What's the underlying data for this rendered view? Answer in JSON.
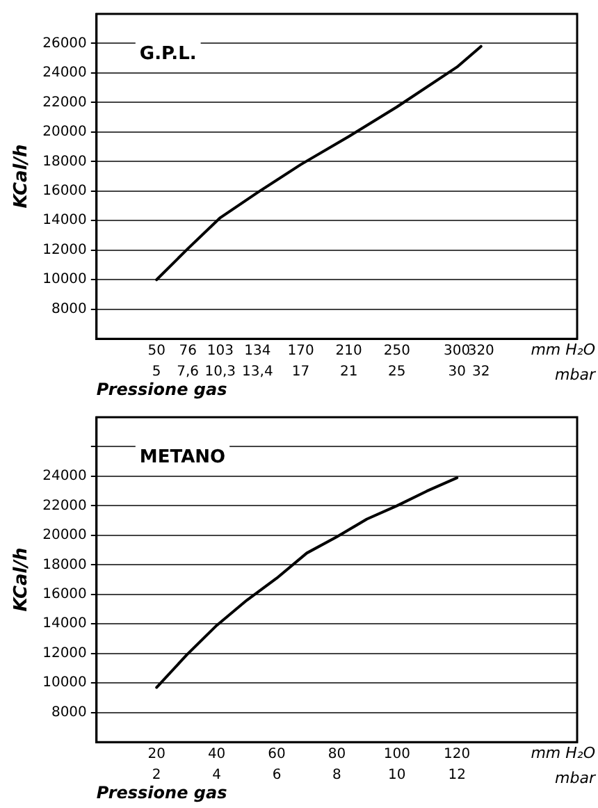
{
  "chart_data": [
    {
      "type": "line",
      "title": "G.P.L.",
      "xlabel": "Pressione gas",
      "ylabel": "KCal/h",
      "annotations": [
        "mm H₂O",
        "mbar"
      ],
      "x": [
        50,
        76,
        103,
        134,
        170,
        210,
        250,
        300,
        320
      ],
      "series": [
        {
          "color": "#000000",
          "values": [
            10000,
            12100,
            14200,
            15900,
            17800,
            19700,
            21700,
            24400,
            25800
          ]
        }
      ],
      "xlim": [
        0,
        400
      ],
      "xticks": [
        50,
        76,
        103,
        134,
        170,
        210,
        250,
        300,
        320
      ],
      "x2lim": [
        0,
        40
      ],
      "x2ticks": [
        5,
        {
          "value": 7.6,
          "label": "7,6"
        },
        {
          "value": 10.3,
          "label": "10,3"
        },
        {
          "value": 13.4,
          "label": "13,4"
        },
        17,
        21,
        25,
        30,
        32
      ],
      "ylim": [
        6000,
        28000
      ],
      "yticks": [
        8000,
        10000,
        12000,
        14000,
        16000,
        18000,
        20000,
        22000,
        24000,
        26000
      ],
      "grid": "y",
      "legend": false,
      "marker": "none",
      "line_style": "solid"
    },
    {
      "type": "line",
      "title": "METANO",
      "xlabel": "Pressione gas",
      "ylabel": "KCal/h",
      "annotations": [
        "mm H₂O",
        "mbar"
      ],
      "x": [
        20,
        30,
        40,
        50,
        60,
        70,
        80,
        90,
        100,
        110,
        120
      ],
      "series": [
        {
          "color": "#000000",
          "values": [
            9700,
            11900,
            13900,
            15600,
            17100,
            18800,
            19900,
            21100,
            22000,
            23000,
            23900
          ]
        }
      ],
      "xlim": [
        0,
        160
      ],
      "xticks": [
        20,
        40,
        60,
        80,
        100,
        120
      ],
      "x2lim": [
        0,
        16
      ],
      "x2ticks": [
        2,
        4,
        6,
        8,
        10,
        12
      ],
      "ylim": [
        6000,
        28000
      ],
      "yticks": [
        8000,
        10000,
        12000,
        14000,
        16000,
        18000,
        20000,
        22000,
        24000,
        {
          "value": 26000,
          "label": null
        }
      ],
      "grid": "y",
      "legend": false,
      "marker": "none",
      "line_style": "solid"
    }
  ]
}
